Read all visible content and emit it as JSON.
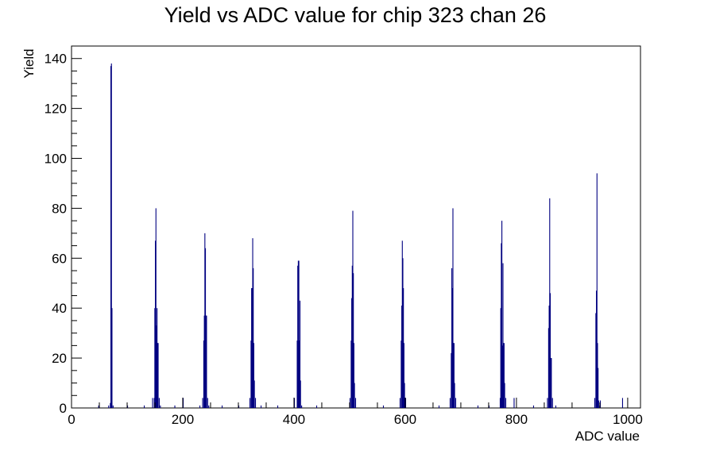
{
  "chart_data": {
    "type": "bar",
    "title": "Yield vs ADC value for chip 323 chan 26",
    "xlabel": "ADC value",
    "ylabel": "Yield",
    "xlim": [
      0,
      1023
    ],
    "ylim": [
      0,
      145
    ],
    "x_ticks": [
      0,
      200,
      400,
      600,
      800,
      1000
    ],
    "x_tick_labels": [
      "0",
      "200",
      "400",
      "600",
      "800",
      "1000"
    ],
    "y_ticks": [
      0,
      20,
      40,
      60,
      80,
      100,
      120,
      140
    ],
    "y_tick_labels": [
      "0",
      "20",
      "40",
      "60",
      "80",
      "100",
      "120",
      "140"
    ],
    "grid": false,
    "legend": "none",
    "bar_color": "#000080",
    "series": [
      {
        "bins": [
          [
            48,
            1
          ],
          [
            66,
            1
          ],
          [
            69,
            2
          ],
          [
            70,
            137
          ],
          [
            71,
            138
          ],
          [
            72,
            40
          ],
          [
            74,
            1
          ],
          [
            100,
            1
          ],
          [
            130,
            1
          ],
          [
            145,
            4
          ],
          [
            148,
            4
          ],
          [
            149,
            40
          ],
          [
            150,
            67
          ],
          [
            151,
            80
          ],
          [
            152,
            33
          ],
          [
            153,
            40
          ],
          [
            154,
            26
          ],
          [
            155,
            26
          ],
          [
            157,
            4
          ],
          [
            159,
            1
          ],
          [
            185,
            1
          ],
          [
            200,
            4
          ],
          [
            230,
            1
          ],
          [
            235,
            4
          ],
          [
            237,
            27
          ],
          [
            238,
            37
          ],
          [
            239,
            70
          ],
          [
            240,
            64
          ],
          [
            241,
            37
          ],
          [
            242,
            37
          ],
          [
            244,
            4
          ],
          [
            246,
            1
          ],
          [
            270,
            1
          ],
          [
            300,
            1
          ],
          [
            320,
            4
          ],
          [
            322,
            27
          ],
          [
            323,
            48
          ],
          [
            324,
            48
          ],
          [
            325,
            68
          ],
          [
            326,
            56
          ],
          [
            327,
            26
          ],
          [
            328,
            11
          ],
          [
            330,
            4
          ],
          [
            340,
            1
          ],
          [
            370,
            1
          ],
          [
            400,
            4
          ],
          [
            405,
            27
          ],
          [
            406,
            57
          ],
          [
            407,
            59
          ],
          [
            408,
            59
          ],
          [
            409,
            27
          ],
          [
            410,
            43
          ],
          [
            411,
            11
          ],
          [
            413,
            1
          ],
          [
            440,
            1
          ],
          [
            500,
            4
          ],
          [
            502,
            27
          ],
          [
            503,
            44
          ],
          [
            504,
            57
          ],
          [
            505,
            79
          ],
          [
            506,
            54
          ],
          [
            507,
            26
          ],
          [
            508,
            10
          ],
          [
            510,
            4
          ],
          [
            560,
            1
          ],
          [
            590,
            4
          ],
          [
            592,
            27
          ],
          [
            593,
            41
          ],
          [
            594,
            67
          ],
          [
            595,
            60
          ],
          [
            596,
            48
          ],
          [
            597,
            26
          ],
          [
            598,
            10
          ],
          [
            600,
            4
          ],
          [
            660,
            1
          ],
          [
            680,
            4
          ],
          [
            682,
            22
          ],
          [
            683,
            56
          ],
          [
            684,
            48
          ],
          [
            685,
            80
          ],
          [
            686,
            26
          ],
          [
            687,
            26
          ],
          [
            688,
            10
          ],
          [
            690,
            4
          ],
          [
            730,
            1
          ],
          [
            750,
            1
          ],
          [
            770,
            4
          ],
          [
            771,
            40
          ],
          [
            772,
            66
          ],
          [
            773,
            75
          ],
          [
            774,
            25
          ],
          [
            775,
            58
          ],
          [
            776,
            26
          ],
          [
            777,
            26
          ],
          [
            778,
            10
          ],
          [
            780,
            4
          ],
          [
            795,
            4
          ],
          [
            830,
            1
          ],
          [
            855,
            4
          ],
          [
            857,
            32
          ],
          [
            858,
            41
          ],
          [
            859,
            84
          ],
          [
            860,
            46
          ],
          [
            861,
            20
          ],
          [
            862,
            20
          ],
          [
            864,
            4
          ],
          [
            870,
            1
          ],
          [
            940,
            4
          ],
          [
            942,
            38
          ],
          [
            943,
            47
          ],
          [
            944,
            94
          ],
          [
            945,
            26
          ],
          [
            946,
            16
          ],
          [
            947,
            3
          ],
          [
            949,
            1
          ],
          [
            950,
            3
          ],
          [
            990,
            4
          ]
        ]
      }
    ]
  }
}
